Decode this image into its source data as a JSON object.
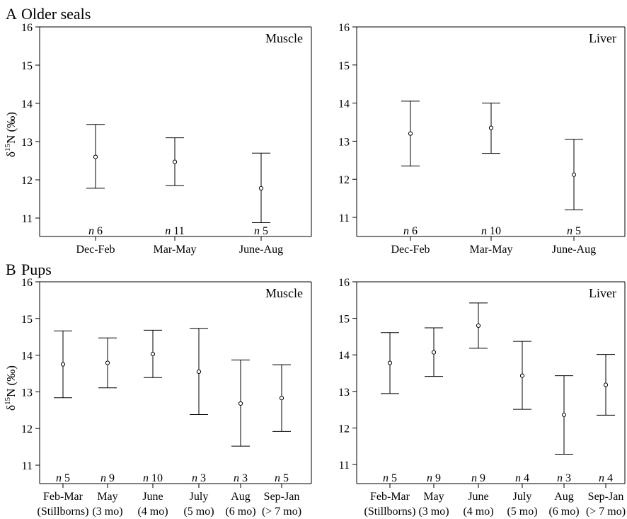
{
  "figure": {
    "section_a": {
      "letter": "A",
      "title": "Older seals"
    },
    "section_b": {
      "letter": "B",
      "title": "Pups"
    },
    "ylabel": "δ15N (‰)"
  },
  "chart_data": [
    {
      "id": "A-muscle",
      "type": "errorbar",
      "panel_label": "Muscle",
      "ylim": [
        10.5,
        16
      ],
      "yticks": [
        11,
        12,
        13,
        14,
        15,
        16
      ],
      "categories": [
        [
          "Dec-Feb"
        ],
        [
          "Mar-May"
        ],
        [
          "June-Aug"
        ]
      ],
      "n": [
        6,
        11,
        5
      ],
      "mean": [
        12.6,
        12.47,
        11.78
      ],
      "lower": [
        11.78,
        11.85,
        10.88
      ],
      "upper": [
        13.45,
        13.1,
        12.7
      ]
    },
    {
      "id": "A-liver",
      "type": "errorbar",
      "panel_label": "Liver",
      "ylim": [
        10.5,
        16
      ],
      "yticks": [
        11,
        12,
        13,
        14,
        15,
        16
      ],
      "categories": [
        [
          "Dec-Feb"
        ],
        [
          "Mar-May"
        ],
        [
          "June-Aug"
        ]
      ],
      "n": [
        6,
        10,
        5
      ],
      "mean": [
        13.2,
        13.35,
        12.12
      ],
      "lower": [
        12.35,
        12.68,
        11.2
      ],
      "upper": [
        14.05,
        14.0,
        13.05
      ]
    },
    {
      "id": "B-muscle",
      "type": "errorbar",
      "panel_label": "Muscle",
      "ylim": [
        10.5,
        16
      ],
      "yticks": [
        11,
        12,
        13,
        14,
        15,
        16
      ],
      "categories": [
        [
          "Feb-Mar",
          "(Stillborns)"
        ],
        [
          "May",
          "(3 mo)"
        ],
        [
          "June",
          "(4 mo)"
        ],
        [
          "July",
          "(5 mo)"
        ],
        [
          "Aug",
          "(6 mo)"
        ],
        [
          "Sep-Jan",
          "(> 7 mo)"
        ]
      ],
      "n": [
        5,
        9,
        10,
        3,
        3,
        5
      ],
      "mean": [
        13.75,
        13.79,
        14.03,
        13.55,
        12.68,
        12.83
      ],
      "lower": [
        12.84,
        13.11,
        13.39,
        12.38,
        11.52,
        11.92
      ],
      "upper": [
        14.66,
        14.47,
        14.68,
        14.73,
        13.87,
        13.74
      ]
    },
    {
      "id": "B-liver",
      "type": "errorbar",
      "panel_label": "Liver",
      "ylim": [
        10.5,
        16
      ],
      "yticks": [
        11,
        12,
        13,
        14,
        15,
        16
      ],
      "categories": [
        [
          "Feb-Mar",
          "(Stillborns)"
        ],
        [
          "May",
          "(3 mo)"
        ],
        [
          "June",
          "(4 mo)"
        ],
        [
          "July",
          "(5 mo)"
        ],
        [
          "Aug",
          "(6 mo)"
        ],
        [
          "Sep-Jan",
          "(> 7 mo)"
        ]
      ],
      "n": [
        5,
        9,
        9,
        4,
        3,
        4
      ],
      "mean": [
        13.78,
        14.07,
        14.8,
        13.43,
        12.36,
        13.18
      ],
      "lower": [
        12.94,
        13.41,
        14.18,
        12.51,
        11.28,
        12.35
      ],
      "upper": [
        14.61,
        14.74,
        15.42,
        14.37,
        13.43,
        14.01
      ]
    }
  ]
}
